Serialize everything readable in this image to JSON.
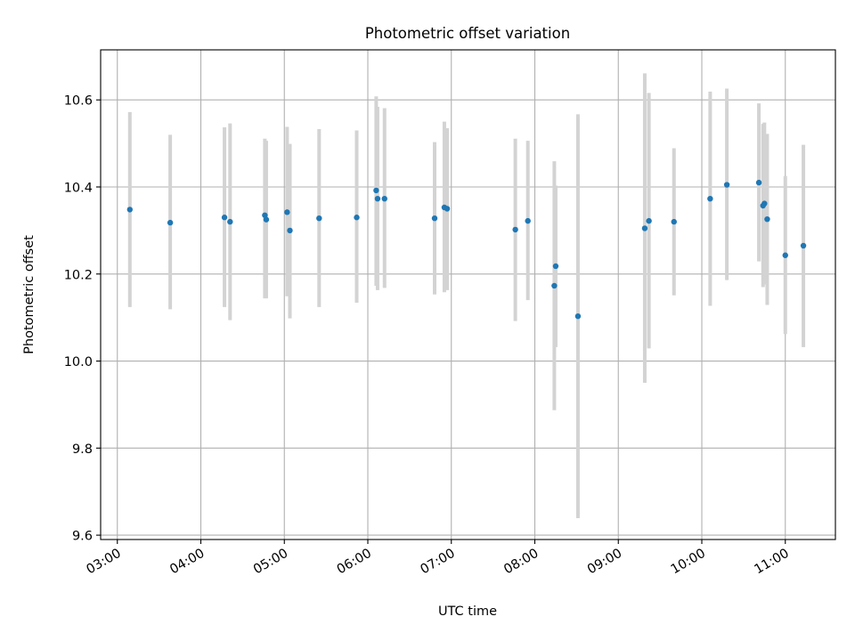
{
  "chart_data": {
    "type": "scatter",
    "title": "Photometric offset variation",
    "xlabel": "UTC time",
    "ylabel": "Photometric offset",
    "x_ticks": [
      "03:00",
      "04:00",
      "05:00",
      "06:00",
      "07:00",
      "08:00",
      "09:00",
      "10:00",
      "11:00"
    ],
    "y_ticks": [
      "9.6",
      "9.8",
      "10.0",
      "10.2",
      "10.4",
      "10.6"
    ],
    "xlim": [
      "02:48",
      "11:36"
    ],
    "ylim": [
      9.59,
      10.715
    ],
    "grid": true,
    "colors": {
      "point": "#1f77b4",
      "errorbar": "#d3d3d3",
      "grid": "#b0b0b0"
    },
    "points": [
      {
        "x": "03:09",
        "y": 10.348,
        "ylow": 10.124,
        "yhigh": 10.572
      },
      {
        "x": "03:38",
        "y": 10.318,
        "ylow": 10.119,
        "yhigh": 10.52
      },
      {
        "x": "04:17",
        "y": 10.33,
        "ylow": 10.124,
        "yhigh": 10.537
      },
      {
        "x": "04:21",
        "y": 10.32,
        "ylow": 10.094,
        "yhigh": 10.546
      },
      {
        "x": "04:46",
        "y": 10.335,
        "ylow": 10.144,
        "yhigh": 10.511
      },
      {
        "x": "04:47",
        "y": 10.325,
        "ylow": 10.144,
        "yhigh": 10.506
      },
      {
        "x": "05:02",
        "y": 10.342,
        "ylow": 10.149,
        "yhigh": 10.538
      },
      {
        "x": "05:04",
        "y": 10.3,
        "ylow": 10.098,
        "yhigh": 10.499
      },
      {
        "x": "05:25",
        "y": 10.328,
        "ylow": 10.124,
        "yhigh": 10.533
      },
      {
        "x": "05:52",
        "y": 10.33,
        "ylow": 10.134,
        "yhigh": 10.53
      },
      {
        "x": "06:06",
        "y": 10.392,
        "ylow": 10.173,
        "yhigh": 10.608
      },
      {
        "x": "06:07",
        "y": 10.373,
        "ylow": 10.163,
        "yhigh": 10.584
      },
      {
        "x": "06:12",
        "y": 10.373,
        "ylow": 10.168,
        "yhigh": 10.581
      },
      {
        "x": "06:48",
        "y": 10.328,
        "ylow": 10.153,
        "yhigh": 10.503
      },
      {
        "x": "06:55",
        "y": 10.353,
        "ylow": 10.158,
        "yhigh": 10.55
      },
      {
        "x": "06:57",
        "y": 10.35,
        "ylow": 10.163,
        "yhigh": 10.535
      },
      {
        "x": "07:46",
        "y": 10.302,
        "ylow": 10.092,
        "yhigh": 10.511
      },
      {
        "x": "07:55",
        "y": 10.322,
        "ylow": 10.14,
        "yhigh": 10.506
      },
      {
        "x": "08:14",
        "y": 10.173,
        "ylow": 9.887,
        "yhigh": 10.459
      },
      {
        "x": "08:15",
        "y": 10.218,
        "ylow": 10.032,
        "yhigh": 10.403
      },
      {
        "x": "08:31",
        "y": 10.103,
        "ylow": 9.639,
        "yhigh": 10.567
      },
      {
        "x": "09:19",
        "y": 10.305,
        "ylow": 9.95,
        "yhigh": 10.661
      },
      {
        "x": "09:22",
        "y": 10.322,
        "ylow": 10.029,
        "yhigh": 10.616
      },
      {
        "x": "09:40",
        "y": 10.32,
        "ylow": 10.151,
        "yhigh": 10.489
      },
      {
        "x": "10:06",
        "y": 10.373,
        "ylow": 10.127,
        "yhigh": 10.619
      },
      {
        "x": "10:18",
        "y": 10.405,
        "ylow": 10.186,
        "yhigh": 10.626
      },
      {
        "x": "10:41",
        "y": 10.41,
        "ylow": 10.229,
        "yhigh": 10.592
      },
      {
        "x": "10:44",
        "y": 10.357,
        "ylow": 10.17,
        "yhigh": 10.545
      },
      {
        "x": "10:45",
        "y": 10.362,
        "ylow": 10.176,
        "yhigh": 10.548
      },
      {
        "x": "10:47",
        "y": 10.326,
        "ylow": 10.129,
        "yhigh": 10.522
      },
      {
        "x": "11:00",
        "y": 10.243,
        "ylow": 10.062,
        "yhigh": 10.425
      },
      {
        "x": "11:13",
        "y": 10.265,
        "ylow": 10.032,
        "yhigh": 10.497
      }
    ]
  }
}
